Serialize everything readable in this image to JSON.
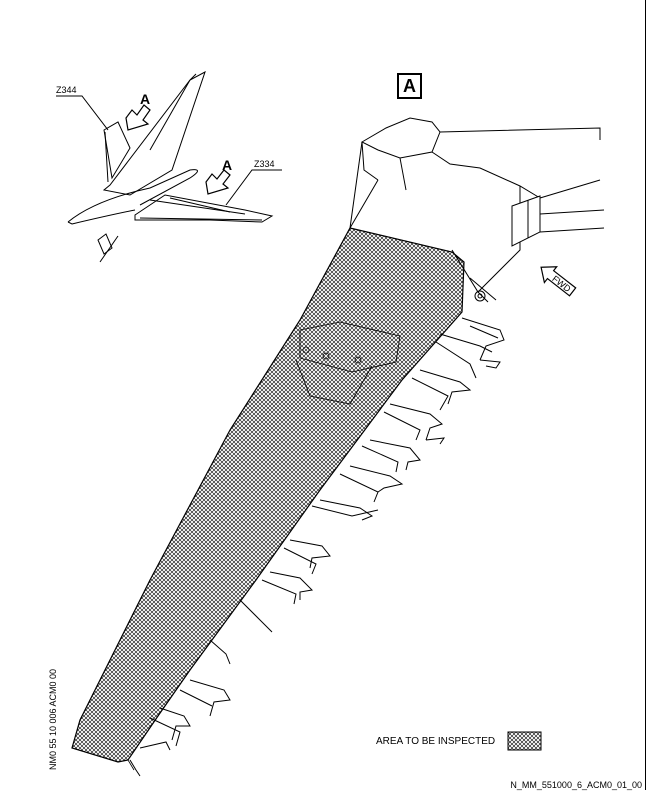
{
  "view_label": "A",
  "zones": {
    "zone_1": "Z344",
    "zone_2": "Z334"
  },
  "arrow_labels": {
    "arrow_1": "A",
    "arrow_2": "A"
  },
  "fwd_label": "FWD",
  "legend": {
    "text": "AREA TO BE INSPECTED"
  },
  "side_code": "NM0 55 10 006 ACM0 00",
  "doc_ref": "N_MM_551000_6_ACM0_01_00"
}
